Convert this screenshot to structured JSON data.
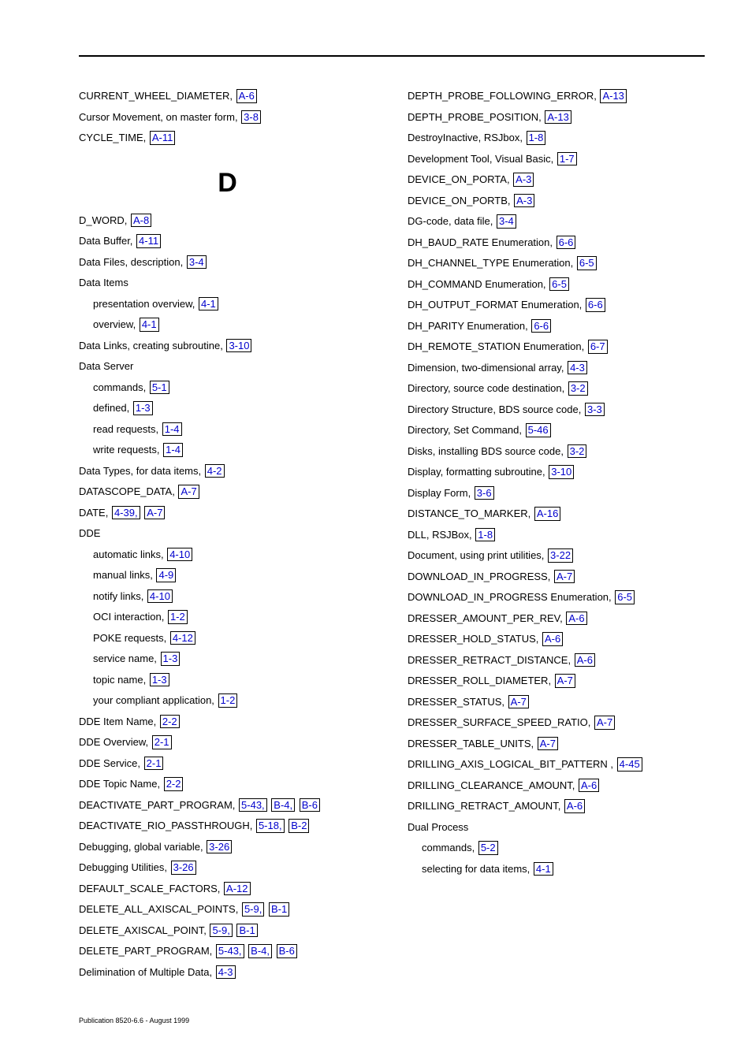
{
  "footer": "Publication 8520-6.6 - August 1999",
  "heading_d": "D",
  "col1_top": [
    {
      "text": "CURRENT_WHEEL_DIAMETER, ",
      "refs": [
        "A-6"
      ]
    },
    {
      "text": "Cursor Movement, on master form, ",
      "refs": [
        "3-8"
      ]
    },
    {
      "text": "CYCLE_TIME, ",
      "refs": [
        "A-11"
      ]
    }
  ],
  "col1_d": [
    {
      "text": "D_WORD, ",
      "refs": [
        "A-8"
      ]
    },
    {
      "text": "Data Buffer, ",
      "refs": [
        "4-11"
      ]
    },
    {
      "text": "Data Files, description, ",
      "refs": [
        "3-4"
      ]
    },
    {
      "text": "Data Items",
      "refs": []
    },
    {
      "text": "presentation overview, ",
      "refs": [
        "4-1"
      ],
      "sub": true
    },
    {
      "text": "overview, ",
      "refs": [
        "4-1"
      ],
      "sub": true
    },
    {
      "text": "Data Links, creating subroutine, ",
      "refs": [
        "3-10"
      ]
    },
    {
      "text": "Data Server",
      "refs": []
    },
    {
      "text": "commands, ",
      "refs": [
        "5-1"
      ],
      "sub": true
    },
    {
      "text": "defined, ",
      "refs": [
        "1-3"
      ],
      "sub": true
    },
    {
      "text": "read requests, ",
      "refs": [
        "1-4"
      ],
      "sub": true
    },
    {
      "text": "write requests, ",
      "refs": [
        "1-4"
      ],
      "sub": true
    },
    {
      "text": "Data Types, for data items, ",
      "refs": [
        "4-2"
      ]
    },
    {
      "text": "DATASCOPE_DATA, ",
      "refs": [
        "A-7"
      ]
    },
    {
      "text": "DATE, ",
      "refs": [
        "4-39,",
        "A-7"
      ]
    },
    {
      "text": "DDE",
      "refs": []
    },
    {
      "text": "automatic links, ",
      "refs": [
        "4-10"
      ],
      "sub": true
    },
    {
      "text": "manual links, ",
      "refs": [
        "4-9"
      ],
      "sub": true
    },
    {
      "text": "notify links, ",
      "refs": [
        "4-10"
      ],
      "sub": true
    },
    {
      "text": "OCI interaction, ",
      "refs": [
        "1-2"
      ],
      "sub": true
    },
    {
      "text": "POKE requests, ",
      "refs": [
        "4-12"
      ],
      "sub": true
    },
    {
      "text": "service name, ",
      "refs": [
        "1-3"
      ],
      "sub": true
    },
    {
      "text": "topic name, ",
      "refs": [
        "1-3"
      ],
      "sub": true
    },
    {
      "text": "your compliant application, ",
      "refs": [
        "1-2"
      ],
      "sub": true
    },
    {
      "text": "DDE Item Name, ",
      "refs": [
        "2-2"
      ]
    },
    {
      "text": "DDE Overview, ",
      "refs": [
        "2-1"
      ]
    },
    {
      "text": "DDE Service, ",
      "refs": [
        "2-1"
      ]
    },
    {
      "text": "DDE Topic Name, ",
      "refs": [
        "2-2"
      ]
    },
    {
      "text": "DEACTIVATE_PART_PROGRAM, ",
      "refs": [
        "5-43,",
        "B-4,",
        "B-6"
      ]
    },
    {
      "text": "DEACTIVATE_RIO_PASSTHROUGH, ",
      "refs": [
        "5-18,",
        "B-2"
      ]
    },
    {
      "text": "Debugging, global variable, ",
      "refs": [
        "3-26"
      ]
    },
    {
      "text": "Debugging Utilities, ",
      "refs": [
        "3-26"
      ]
    },
    {
      "text": "DEFAULT_SCALE_FACTORS, ",
      "refs": [
        "A-12"
      ]
    },
    {
      "text": "DELETE_ALL_AXISCAL_POINTS, ",
      "refs": [
        "5-9,",
        "B-1"
      ]
    },
    {
      "text": "DELETE_AXISCAL_POINT, ",
      "refs": [
        "5-9,",
        "B-1"
      ]
    },
    {
      "text": "DELETE_PART_PROGRAM, ",
      "refs": [
        "5-43,",
        "B-4,",
        "B-6"
      ]
    },
    {
      "text": "Delimination of Multiple Data, ",
      "refs": [
        "4-3"
      ]
    }
  ],
  "col2": [
    {
      "text": "DEPTH_PROBE_FOLLOWING_ERROR, ",
      "refs": [
        "A-13"
      ]
    },
    {
      "text": "DEPTH_PROBE_POSITION, ",
      "refs": [
        "A-13"
      ]
    },
    {
      "text": "DestroyInactive, RSJbox, ",
      "refs": [
        "1-8"
      ]
    },
    {
      "text": "Development Tool, Visual Basic, ",
      "refs": [
        "1-7"
      ]
    },
    {
      "text": "DEVICE_ON_PORTA, ",
      "refs": [
        "A-3"
      ]
    },
    {
      "text": "DEVICE_ON_PORTB, ",
      "refs": [
        "A-3"
      ]
    },
    {
      "text": "DG-code, data file, ",
      "refs": [
        "3-4"
      ]
    },
    {
      "text": "DH_BAUD_RATE Enumeration, ",
      "refs": [
        "6-6"
      ]
    },
    {
      "text": "DH_CHANNEL_TYPE Enumeration, ",
      "refs": [
        "6-5"
      ]
    },
    {
      "text": "DH_COMMAND Enumeration, ",
      "refs": [
        "6-5"
      ]
    },
    {
      "text": "DH_OUTPUT_FORMAT Enumeration, ",
      "refs": [
        "6-6"
      ]
    },
    {
      "text": "DH_PARITY Enumeration, ",
      "refs": [
        "6-6"
      ]
    },
    {
      "text": "DH_REMOTE_STATION Enumeration, ",
      "refs": [
        "6-7"
      ]
    },
    {
      "text": "Dimension, two-dimensional array, ",
      "refs": [
        "4-3"
      ]
    },
    {
      "text": "Directory, source code destination, ",
      "refs": [
        "3-2"
      ]
    },
    {
      "text": "Directory Structure, BDS source code, ",
      "refs": [
        "3-3"
      ]
    },
    {
      "text": "Directory, Set Command, ",
      "refs": [
        "5-46"
      ]
    },
    {
      "text": "Disks, installing BDS source code, ",
      "refs": [
        "3-2"
      ]
    },
    {
      "text": "Display, formatting subroutine, ",
      "refs": [
        "3-10"
      ]
    },
    {
      "text": "Display Form, ",
      "refs": [
        "3-6"
      ]
    },
    {
      "text": "DISTANCE_TO_MARKER, ",
      "refs": [
        "A-16"
      ]
    },
    {
      "text": "DLL, RSJBox, ",
      "refs": [
        "1-8"
      ]
    },
    {
      "text": "Document, using print utilities, ",
      "refs": [
        "3-22"
      ]
    },
    {
      "text": "DOWNLOAD_IN_PROGRESS, ",
      "refs": [
        "A-7"
      ]
    },
    {
      "text": "DOWNLOAD_IN_PROGRESS Enumeration, ",
      "refs": [
        "6-5"
      ]
    },
    {
      "text": "DRESSER_AMOUNT_PER_REV, ",
      "refs": [
        "A-6"
      ]
    },
    {
      "text": "DRESSER_HOLD_STATUS, ",
      "refs": [
        "A-6"
      ]
    },
    {
      "text": "DRESSER_RETRACT_DISTANCE, ",
      "refs": [
        "A-6"
      ]
    },
    {
      "text": "DRESSER_ROLL_DIAMETER, ",
      "refs": [
        "A-7"
      ]
    },
    {
      "text": "DRESSER_STATUS, ",
      "refs": [
        "A-7"
      ]
    },
    {
      "text": "DRESSER_SURFACE_SPEED_RATIO, ",
      "refs": [
        "A-7"
      ]
    },
    {
      "text": "DRESSER_TABLE_UNITS, ",
      "refs": [
        "A-7"
      ]
    },
    {
      "text": "DRILLING_AXIS_LOGICAL_BIT_PATTERN , ",
      "refs": [
        "4-45"
      ]
    },
    {
      "text": "DRILLING_CLEARANCE_AMOUNT, ",
      "refs": [
        "A-6"
      ]
    },
    {
      "text": "DRILLING_RETRACT_AMOUNT, ",
      "refs": [
        "A-6"
      ]
    },
    {
      "text": "Dual Process",
      "refs": []
    },
    {
      "text": "commands, ",
      "refs": [
        "5-2"
      ],
      "sub": true
    },
    {
      "text": "selecting for data items, ",
      "refs": [
        "4-1"
      ],
      "sub": true
    }
  ]
}
